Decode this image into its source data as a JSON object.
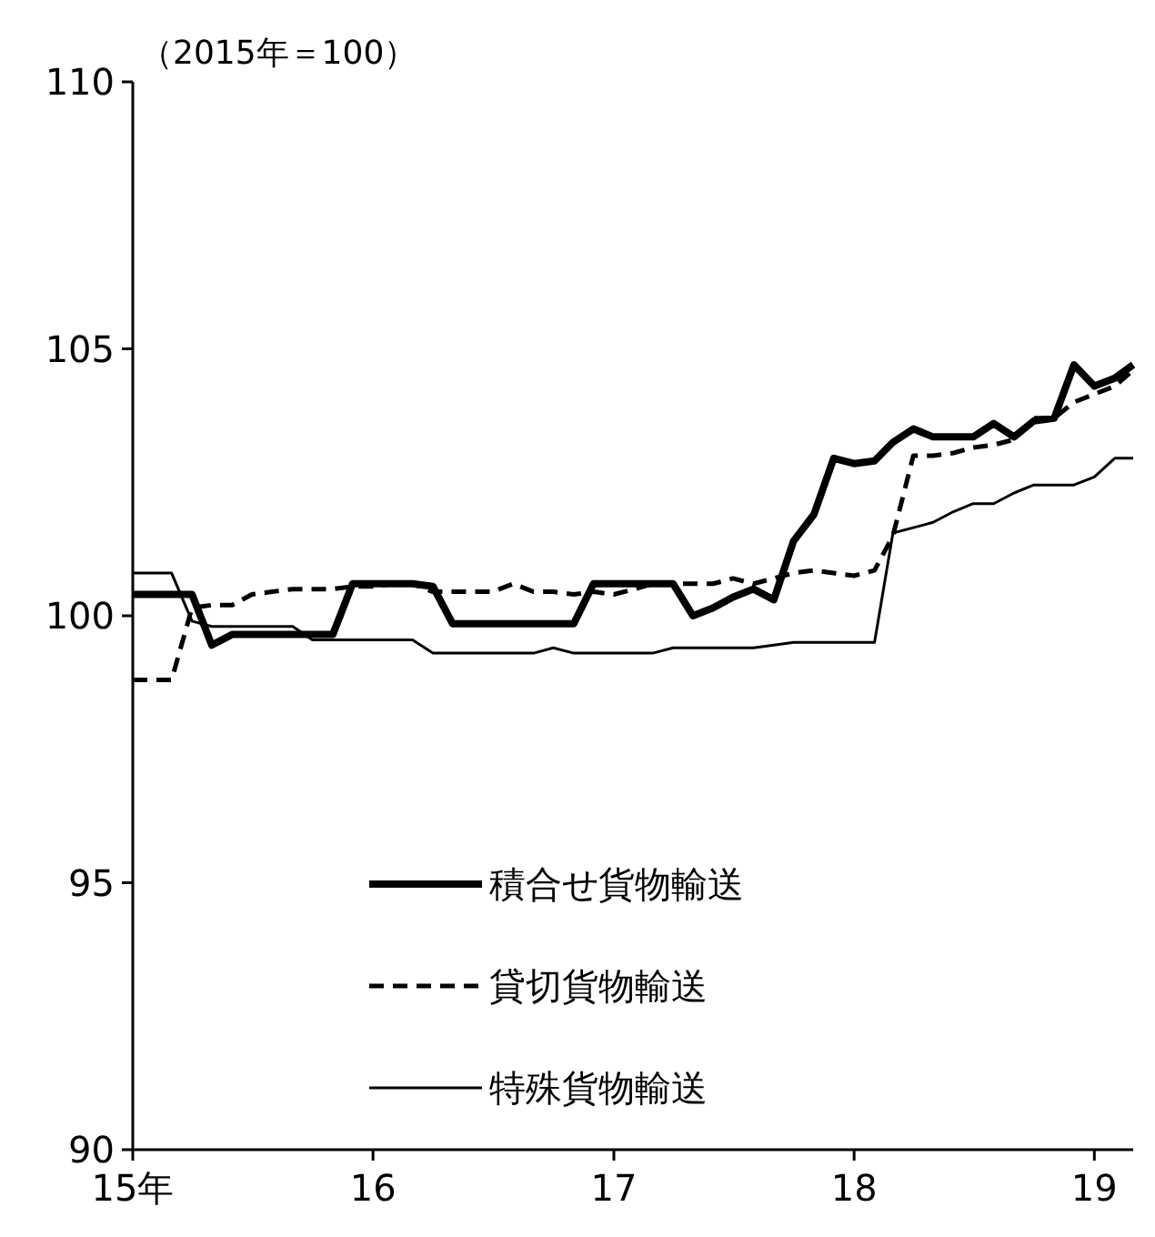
{
  "chart_data": {
    "type": "line",
    "annotations": [
      "（2015年＝100）"
    ],
    "x": [
      "2015-01",
      "2015-02",
      "2015-03",
      "2015-04",
      "2015-05",
      "2015-06",
      "2015-07",
      "2015-08",
      "2015-09",
      "2015-10",
      "2015-11",
      "2015-12",
      "2016-01",
      "2016-02",
      "2016-03",
      "2016-04",
      "2016-05",
      "2016-06",
      "2016-07",
      "2016-08",
      "2016-09",
      "2016-10",
      "2016-11",
      "2016-12",
      "2017-01",
      "2017-02",
      "2017-03",
      "2017-04",
      "2017-05",
      "2017-06",
      "2017-07",
      "2017-08",
      "2017-09",
      "2017-10",
      "2017-11",
      "2017-12",
      "2018-01",
      "2018-02",
      "2018-03",
      "2018-04",
      "2018-05",
      "2018-06",
      "2018-07",
      "2018-08",
      "2018-09",
      "2018-10",
      "2018-11",
      "2018-12",
      "2019-01",
      "2019-02",
      "2019-03"
    ],
    "series": [
      {
        "name": "積合せ貨物輸送",
        "color": "#000000",
        "line_style": "solid",
        "values": [
          100.4,
          100.4,
          100.4,
          100.4,
          99.45,
          99.65,
          99.65,
          99.65,
          99.65,
          99.65,
          99.65,
          100.6,
          100.6,
          100.6,
          100.6,
          100.55,
          99.85,
          99.85,
          99.85,
          99.85,
          99.85,
          99.85,
          99.85,
          100.6,
          100.6,
          100.6,
          100.6,
          100.6,
          100.0,
          100.15,
          100.35,
          100.5,
          100.3,
          101.4,
          101.9,
          102.95,
          102.85,
          102.9,
          103.25,
          103.5,
          103.35,
          103.35,
          103.35,
          103.6,
          103.35,
          103.65,
          103.7,
          104.7,
          104.3,
          104.45,
          104.7
        ]
      },
      {
        "name": "貸切貨物輸送",
        "color": "#000000",
        "line_style": "dashed",
        "values": [
          98.8,
          98.8,
          98.8,
          100.15,
          100.2,
          100.2,
          100.4,
          100.45,
          100.5,
          100.5,
          100.5,
          100.55,
          100.55,
          100.6,
          100.6,
          100.45,
          100.45,
          100.45,
          100.45,
          100.6,
          100.45,
          100.45,
          100.4,
          100.45,
          100.4,
          100.5,
          100.6,
          100.6,
          100.6,
          100.6,
          100.7,
          100.6,
          100.7,
          100.8,
          100.85,
          100.8,
          100.75,
          100.85,
          101.5,
          103.0,
          103.0,
          103.05,
          103.15,
          103.2,
          103.3,
          103.7,
          103.7,
          104.0,
          104.15,
          104.3,
          104.6
        ]
      },
      {
        "name": "特殊貨物輸送",
        "color": "#000000",
        "line_style": "solid",
        "values": [
          100.8,
          100.8,
          100.8,
          99.9,
          99.8,
          99.8,
          99.8,
          99.8,
          99.8,
          99.55,
          99.55,
          99.55,
          99.55,
          99.55,
          99.55,
          99.3,
          99.3,
          99.3,
          99.3,
          99.3,
          99.3,
          99.4,
          99.3,
          99.3,
          99.3,
          99.3,
          99.3,
          99.4,
          99.4,
          99.4,
          99.4,
          99.4,
          99.45,
          99.5,
          99.5,
          99.5,
          99.5,
          99.5,
          101.55,
          101.65,
          101.75,
          101.95,
          102.1,
          102.1,
          102.3,
          102.45,
          102.45,
          102.45,
          102.6,
          102.95,
          102.95
        ]
      }
    ],
    "xlim": [
      "2015-01",
      "2019-03"
    ],
    "xticks": [
      {
        "value": "2015-01",
        "label": "15年"
      },
      {
        "value": "2016-01",
        "label": "16"
      },
      {
        "value": "2017-01",
        "label": "17"
      },
      {
        "value": "2018-01",
        "label": "18"
      },
      {
        "value": "2019-01",
        "label": "19"
      }
    ],
    "ylim": [
      90,
      110
    ],
    "yticks": [
      90,
      95,
      100,
      105,
      110
    ],
    "grid": false,
    "legend": "bottom"
  }
}
